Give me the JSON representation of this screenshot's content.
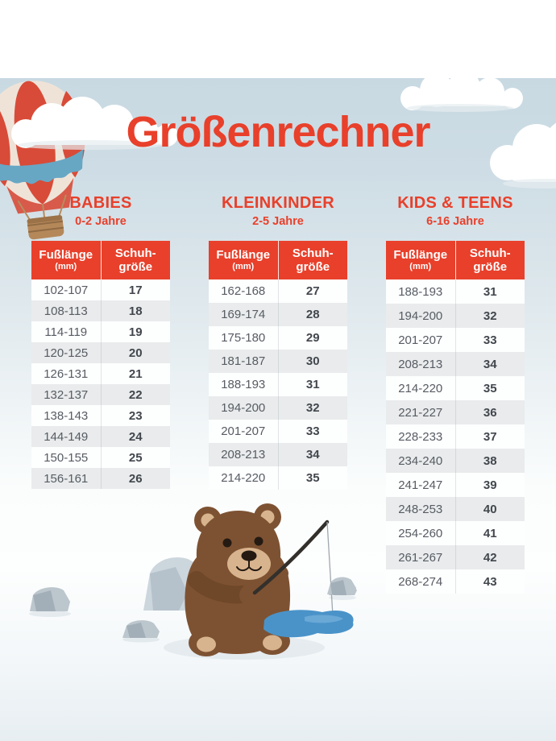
{
  "page": {
    "title": "Größenrechner"
  },
  "table_header": {
    "foot_label": "Fußlänge",
    "foot_unit": "(mm)",
    "size_line1": "Schuh-",
    "size_line2": "größe"
  },
  "groups": [
    {
      "name": "BABIES",
      "age_range": "0-2 Jahre",
      "rows": [
        {
          "foot": "102-107",
          "size": "17"
        },
        {
          "foot": "108-113",
          "size": "18"
        },
        {
          "foot": "114-119",
          "size": "19"
        },
        {
          "foot": "120-125",
          "size": "20"
        },
        {
          "foot": "126-131",
          "size": "21"
        },
        {
          "foot": "132-137",
          "size": "22"
        },
        {
          "foot": "138-143",
          "size": "23"
        },
        {
          "foot": "144-149",
          "size": "24"
        },
        {
          "foot": "150-155",
          "size": "25"
        },
        {
          "foot": "156-161",
          "size": "26"
        }
      ]
    },
    {
      "name": "KLEINKINDER",
      "age_range": "2-5 Jahre",
      "rows": [
        {
          "foot": "162-168",
          "size": "27"
        },
        {
          "foot": "169-174",
          "size": "28"
        },
        {
          "foot": "175-180",
          "size": "29"
        },
        {
          "foot": "181-187",
          "size": "30"
        },
        {
          "foot": "188-193",
          "size": "31"
        },
        {
          "foot": "194-200",
          "size": "32"
        },
        {
          "foot": "201-207",
          "size": "33"
        },
        {
          "foot": "208-213",
          "size": "34"
        },
        {
          "foot": "214-220",
          "size": "35"
        }
      ]
    },
    {
      "name": "KIDS & TEENS",
      "age_range": "6-16 Jahre",
      "rows": [
        {
          "foot": "188-193",
          "size": "31"
        },
        {
          "foot": "194-200",
          "size": "32"
        },
        {
          "foot": "201-207",
          "size": "33"
        },
        {
          "foot": "208-213",
          "size": "34"
        },
        {
          "foot": "214-220",
          "size": "35"
        },
        {
          "foot": "221-227",
          "size": "36"
        },
        {
          "foot": "228-233",
          "size": "37"
        },
        {
          "foot": "234-240",
          "size": "38"
        },
        {
          "foot": "241-247",
          "size": "39"
        },
        {
          "foot": "248-253",
          "size": "40"
        },
        {
          "foot": "254-260",
          "size": "41"
        },
        {
          "foot": "261-267",
          "size": "42"
        },
        {
          "foot": "268-274",
          "size": "43"
        }
      ]
    }
  ],
  "colors": {
    "accent": "#e8402b",
    "header_text": "#ffffff",
    "row_alt": "#e9ebec",
    "sky_top": "#c8d9e2",
    "puddle_blue": "#4a93c9"
  }
}
